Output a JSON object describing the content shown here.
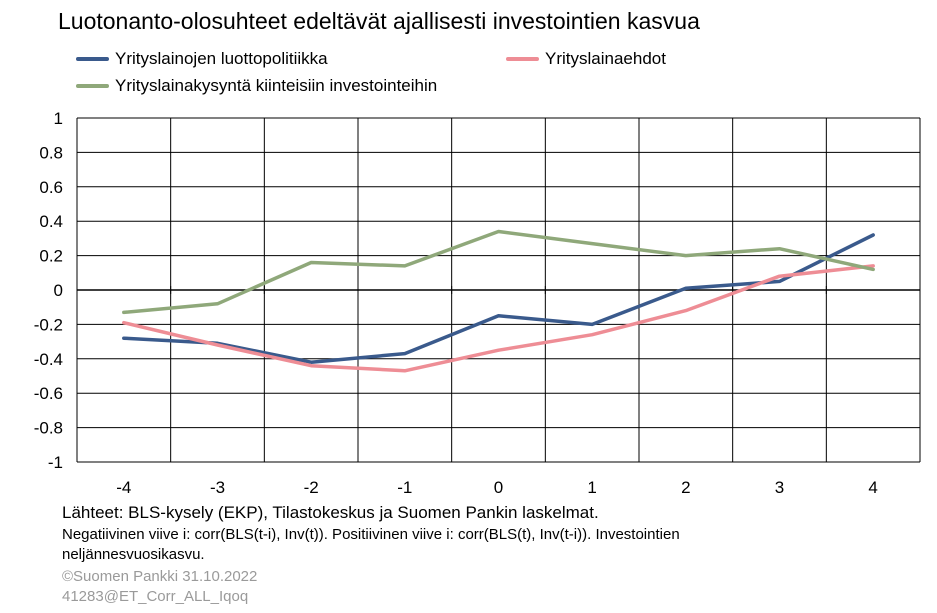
{
  "title": "Luotonanto-olosuhteet edeltävät ajallisesti investointien kasvua",
  "colors": {
    "series1": "#3a5a8c",
    "series2": "#ee8d95",
    "series3": "#8fa87a",
    "grid": "#000000"
  },
  "chart_data": {
    "type": "line",
    "title": "Luotonanto-olosuhteet edeltävät ajallisesti investointien kasvua",
    "x": [
      -4,
      -3,
      -2,
      -1,
      0,
      1,
      2,
      3,
      4
    ],
    "x_tick_labels": [
      "-4",
      "-3",
      "-2",
      "-1",
      "0",
      "1",
      "2",
      "3",
      "4"
    ],
    "y_tick_labels": [
      "1",
      "0.8",
      "0.6",
      "0.4",
      "0.2",
      "0",
      "-0.2",
      "-0.4",
      "-0.6",
      "-0.8",
      "-1"
    ],
    "ylim": [
      -1,
      1
    ],
    "grid": true,
    "legend_position": "top-left",
    "series": [
      {
        "name": "Yrityslainojen luottopolitiikka",
        "color": "#3a5a8c",
        "values": [
          -0.28,
          -0.31,
          -0.42,
          -0.37,
          -0.15,
          -0.2,
          0.01,
          0.05,
          0.32
        ]
      },
      {
        "name": "Yrityslainaehdot",
        "color": "#ee8d95",
        "values": [
          -0.19,
          -0.32,
          -0.44,
          -0.47,
          -0.35,
          -0.26,
          -0.12,
          0.08,
          0.14
        ]
      },
      {
        "name": "Yrityslainakysyntä kiinteisiin investointeihin",
        "color": "#8fa87a",
        "values": [
          -0.13,
          -0.08,
          0.16,
          0.14,
          0.34,
          0.27,
          0.2,
          0.24,
          0.12
        ]
      }
    ]
  },
  "footnotes": {
    "source": "Lähteet: BLS-kysely (EKP), Tilastokeskus ja Suomen Pankin laskelmat.",
    "note_line1": "Negatiivinen viive i: corr(BLS(t-i), Inv(t)). Positiivinen viive i: corr(BLS(t), Inv(t-i)). Investointien",
    "note_line2": "neljännesvuosikasvu.",
    "copyright": "©Suomen Pankki 31.10.2022",
    "code": "41283@ET_Corr_ALL_Iqoq"
  }
}
